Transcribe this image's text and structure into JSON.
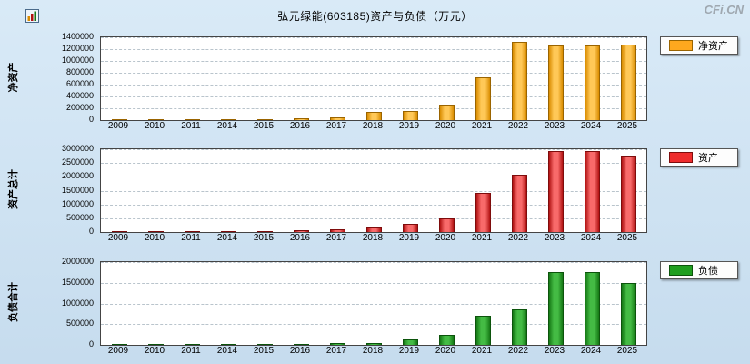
{
  "page": {
    "title": "弘元绿能(603185)资产与负债（万元）",
    "watermark": "CFi.CN"
  },
  "categories": [
    "2009",
    "2010",
    "2011",
    "2014",
    "2015",
    "2016",
    "2017",
    "2018",
    "2019",
    "2020",
    "2021",
    "2022",
    "2023",
    "2024",
    "2025"
  ],
  "chart_data": [
    {
      "type": "bar",
      "title": "净资产",
      "ylabel": "净资产",
      "legend": "净资产",
      "color": "#FFA81E",
      "color_light": "#FFC857",
      "color_dark": "#D98C00",
      "color_edge": "#9A6400",
      "ylim": [
        0,
        1400000
      ],
      "ytick_step": 200000,
      "grid": true,
      "legend_position": "right",
      "categories": [
        "2009",
        "2010",
        "2011",
        "2014",
        "2015",
        "2016",
        "2017",
        "2018",
        "2019",
        "2020",
        "2021",
        "2022",
        "2023",
        "2024",
        "2025"
      ],
      "values": [
        5000,
        8000,
        12000,
        15000,
        18000,
        30000,
        50000,
        140000,
        150000,
        260000,
        730000,
        1320000,
        1260000,
        1265000,
        1270000
      ]
    },
    {
      "type": "bar",
      "title": "资产总计",
      "ylabel": "资产总计",
      "legend": "资产",
      "color": "#EE2C2C",
      "color_light": "#F86A6A",
      "color_dark": "#B01212",
      "color_edge": "#7E0C0C",
      "ylim": [
        0,
        3000000
      ],
      "ytick_step": 500000,
      "grid": true,
      "legend_position": "right",
      "categories": [
        "2009",
        "2010",
        "2011",
        "2014",
        "2015",
        "2016",
        "2017",
        "2018",
        "2019",
        "2020",
        "2021",
        "2022",
        "2023",
        "2024",
        "2025"
      ],
      "values": [
        20000,
        22000,
        25000,
        28000,
        35000,
        60000,
        100000,
        170000,
        300000,
        500000,
        1420000,
        2090000,
        2930000,
        2940000,
        2760000
      ]
    },
    {
      "type": "bar",
      "title": "负债合计",
      "ylabel": "负债合计",
      "legend": "负债",
      "color": "#1F9E1F",
      "color_light": "#44BB44",
      "color_dark": "#157815",
      "color_edge": "#0C540C",
      "ylim": [
        0,
        2000000
      ],
      "ytick_step": 500000,
      "grid": true,
      "legend_position": "right",
      "categories": [
        "2009",
        "2010",
        "2011",
        "2014",
        "2015",
        "2016",
        "2017",
        "2018",
        "2019",
        "2020",
        "2021",
        "2022",
        "2023",
        "2024",
        "2025"
      ],
      "values": [
        12000,
        14000,
        15000,
        15000,
        18000,
        30000,
        50000,
        45000,
        140000,
        250000,
        700000,
        860000,
        1750000,
        1755000,
        1490000
      ]
    }
  ]
}
